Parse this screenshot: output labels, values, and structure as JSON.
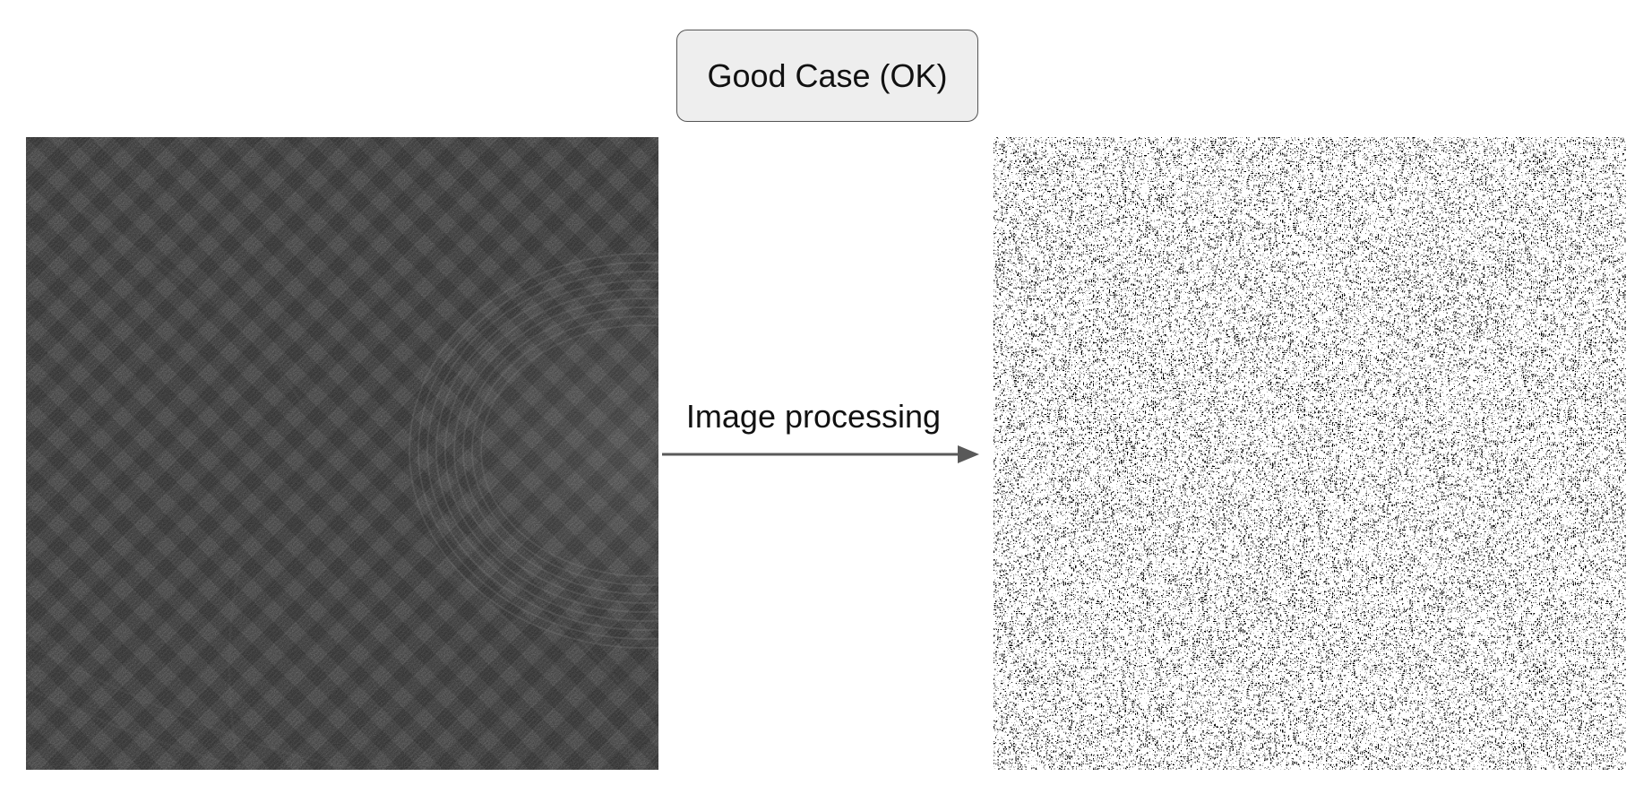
{
  "header": {
    "title": "Good Case (OK)"
  },
  "process": {
    "label": "Image processing"
  },
  "colors": {
    "title_fill": "#eeeeee",
    "title_border": "#555555",
    "arrow": "#595959",
    "input_base": "#3a3a3a",
    "output_base": "#000000",
    "output_speckle": "#ffffff"
  }
}
